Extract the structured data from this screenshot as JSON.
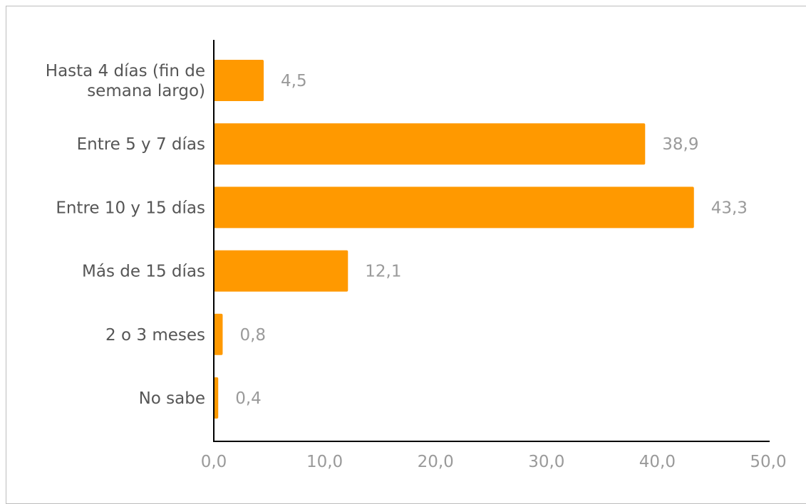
{
  "chart_data": {
    "type": "bar",
    "orientation": "horizontal",
    "categories": [
      [
        "Hasta 4 días (fin de",
        "semana largo)"
      ],
      [
        "Entre 5 y 7 días"
      ],
      [
        "Entre 10 y 15 días"
      ],
      [
        "Más de 15 días"
      ],
      [
        "2 o 3 meses"
      ],
      [
        "No sabe"
      ]
    ],
    "values": [
      4.5,
      38.9,
      43.3,
      12.1,
      0.8,
      0.4
    ],
    "value_labels": [
      "4,5",
      "38,9",
      "43,3",
      "12,1",
      "0,8",
      "0,4"
    ],
    "xlim": [
      0,
      50
    ],
    "ticks": [
      0,
      10,
      20,
      30,
      40,
      50
    ],
    "tick_labels": [
      "0,0",
      "10,0",
      "20,0",
      "30,0",
      "40,0",
      "50,0"
    ],
    "bar_color": "#ff9900",
    "grid": false,
    "title": "",
    "xlabel": "",
    "ylabel": ""
  }
}
